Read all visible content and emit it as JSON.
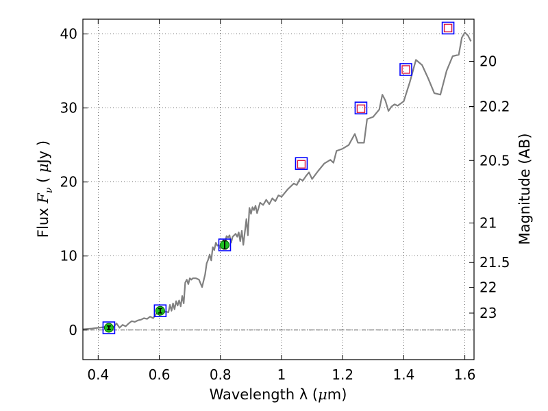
{
  "chart_data": {
    "type": "scatter",
    "xlabel": "Wavelength  λ (μm)",
    "xlabel_parts": [
      "Wavelength  λ (",
      "μ",
      "m)"
    ],
    "ylabel_parts": [
      "Flux  ",
      "F",
      "ν",
      "  (  ",
      "μ",
      "Jy )"
    ],
    "y2label": "Magnitude (AB)",
    "xlim": [
      0.35,
      1.63
    ],
    "ylim": [
      -4,
      42
    ],
    "grid": true,
    "x_ticks": [
      0.4,
      0.6,
      0.8,
      1.0,
      1.2,
      1.4,
      1.6
    ],
    "x_tick_labels": [
      "0.4",
      "0.6",
      "0.8",
      "1",
      "1.2",
      "1.4",
      "1.6"
    ],
    "y_ticks": [
      0,
      10,
      20,
      30,
      40
    ],
    "y_tick_labels": [
      "0",
      "10",
      "20",
      "30",
      "40"
    ],
    "mag_ticks": [
      20,
      20.2,
      20.5,
      21,
      21.5,
      22,
      23
    ],
    "mag_tick_labels": [
      "20",
      "20.2",
      "20.5",
      "21",
      "21.5",
      "22",
      "23"
    ],
    "zero_line": 0,
    "colors": {
      "model": "#808080",
      "observed_fill": "#1fbf1f",
      "observed_edge": "#006400",
      "model_flux_edge": "#0000ff",
      "upper_edge": "#dc143c"
    },
    "series": [
      {
        "name": "model SED",
        "kind": "line",
        "x": [
          0.35,
          0.38,
          0.4,
          0.42,
          0.44,
          0.45,
          0.46,
          0.47,
          0.48,
          0.49,
          0.5,
          0.51,
          0.52,
          0.53,
          0.54,
          0.55,
          0.56,
          0.57,
          0.58,
          0.59,
          0.6,
          0.61,
          0.62,
          0.63,
          0.635,
          0.64,
          0.645,
          0.65,
          0.655,
          0.66,
          0.665,
          0.67,
          0.675,
          0.68,
          0.685,
          0.69,
          0.695,
          0.7,
          0.705,
          0.71,
          0.72,
          0.73,
          0.74,
          0.75,
          0.755,
          0.76,
          0.765,
          0.77,
          0.775,
          0.78,
          0.785,
          0.79,
          0.795,
          0.8,
          0.805,
          0.81,
          0.815,
          0.82,
          0.825,
          0.83,
          0.835,
          0.84,
          0.845,
          0.85,
          0.855,
          0.86,
          0.865,
          0.87,
          0.875,
          0.88,
          0.885,
          0.89,
          0.895,
          0.9,
          0.905,
          0.91,
          0.915,
          0.92,
          0.93,
          0.94,
          0.95,
          0.96,
          0.97,
          0.98,
          0.99,
          1.0,
          1.02,
          1.04,
          1.05,
          1.06,
          1.07,
          1.08,
          1.09,
          1.1,
          1.12,
          1.14,
          1.16,
          1.17,
          1.18,
          1.2,
          1.22,
          1.24,
          1.25,
          1.27,
          1.28,
          1.3,
          1.32,
          1.33,
          1.34,
          1.35,
          1.36,
          1.37,
          1.38,
          1.4,
          1.42,
          1.44,
          1.46,
          1.48,
          1.5,
          1.52,
          1.54,
          1.56,
          1.58,
          1.59,
          1.6,
          1.61,
          1.62
        ],
        "y": [
          0.1,
          0.2,
          0.3,
          0.4,
          0.5,
          0.4,
          0.9,
          0.3,
          0.7,
          0.5,
          0.9,
          1.2,
          1.1,
          1.3,
          1.4,
          1.6,
          1.5,
          1.8,
          1.6,
          2.2,
          2.4,
          2.2,
          2.5,
          2.4,
          3.4,
          2.6,
          3.6,
          2.8,
          3.9,
          3.3,
          4.0,
          3.2,
          4.6,
          3.6,
          6.4,
          6.8,
          6.2,
          7.0,
          6.8,
          7.0,
          7.0,
          6.8,
          5.8,
          7.5,
          9.0,
          9.5,
          10.2,
          9.4,
          11.2,
          10.8,
          11.8,
          11.4,
          11.5,
          11.0,
          11.6,
          12.2,
          11.8,
          12.7,
          12.5,
          12.8,
          11.8,
          12.6,
          12.8,
          13.0,
          12.6,
          13.2,
          12.0,
          13.4,
          11.5,
          13.2,
          15.0,
          12.8,
          16.5,
          15.7,
          16.6,
          16.2,
          16.8,
          15.8,
          17.2,
          16.9,
          17.6,
          17.0,
          17.8,
          17.4,
          18.2,
          18.0,
          19.0,
          19.8,
          19.6,
          20.4,
          20.2,
          20.8,
          21.3,
          20.4,
          21.5,
          22.5,
          23.0,
          22.6,
          24.2,
          24.5,
          25.0,
          26.5,
          25.3,
          25.3,
          28.5,
          28.8,
          29.8,
          31.8,
          31.0,
          29.6,
          30.2,
          30.5,
          30.3,
          30.9,
          33.5,
          36.5,
          35.8,
          34.0,
          32.0,
          31.8,
          35.0,
          37.0,
          37.2,
          39.5,
          40.2,
          39.8,
          39.0
        ]
      },
      {
        "name": "observed photometry",
        "kind": "points",
        "x": [
          0.435,
          0.603,
          0.814
        ],
        "y": [
          0.3,
          2.6,
          11.5
        ],
        "yerr": [
          0.25,
          0.3,
          0.55
        ]
      },
      {
        "name": "model flux in bands",
        "kind": "open-square",
        "x": [
          0.435,
          0.603,
          0.814,
          1.065,
          1.26,
          1.407,
          1.545
        ],
        "y": [
          0.3,
          2.6,
          11.5,
          22.5,
          30.0,
          35.2,
          40.8
        ]
      },
      {
        "name": "upper limits",
        "kind": "small-square",
        "x": [
          1.065,
          1.26,
          1.407,
          1.545
        ],
        "y": [
          22.4,
          29.9,
          35.2,
          40.8
        ]
      }
    ]
  }
}
